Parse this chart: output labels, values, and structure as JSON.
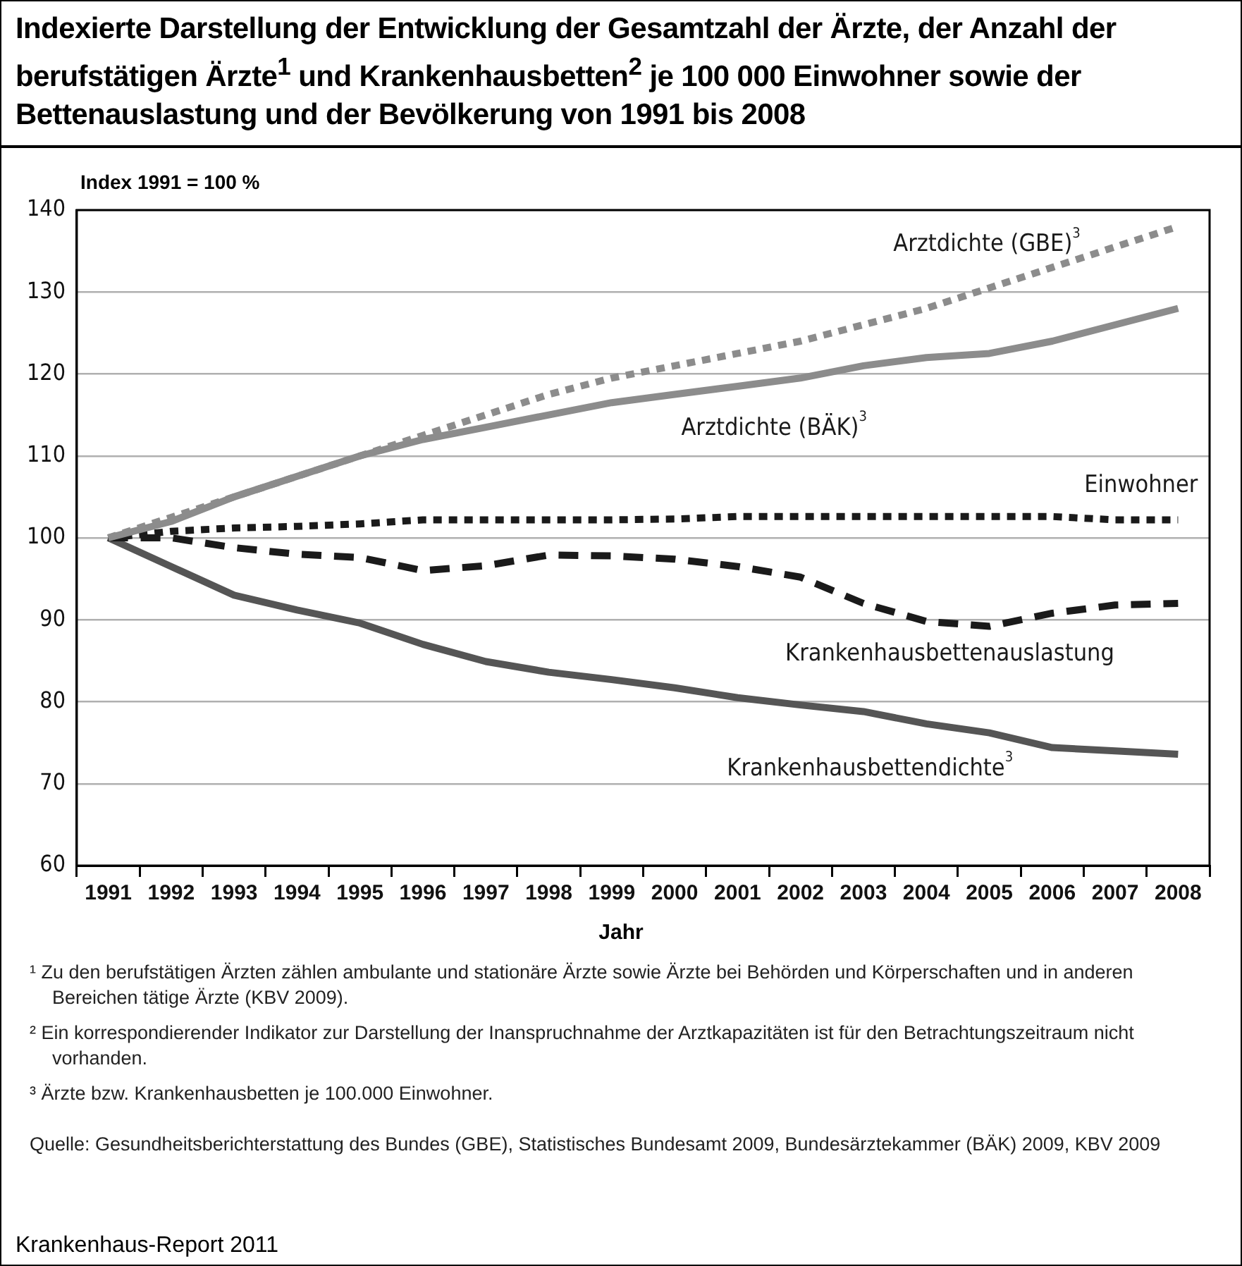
{
  "chart_data": {
    "type": "line",
    "title": "Indexierte Darstellung der Entwicklung der Gesamtzahl der Ärzte, der Anzahl der berufstätigen Ärzte$^{1}$ und Krankenhausbetten$^{2}$ je 100 000 Einwohner sowie der Bettenauslastung und der Bevölkerung von 1991 bis 2008",
    "ylabel": "Index 1991 = 100 %",
    "xlabel": "Jahr",
    "categories": [
      "1991",
      "1992",
      "1993",
      "1994",
      "1995",
      "1996",
      "1997",
      "1998",
      "1999",
      "2000",
      "2001",
      "2002",
      "2003",
      "2004",
      "2005",
      "2006",
      "2007",
      "2008"
    ],
    "ylim": [
      60,
      140
    ],
    "yticks": [
      60,
      70,
      80,
      90,
      100,
      110,
      120,
      130,
      140
    ],
    "grid": "y",
    "legend": false,
    "marker": "none",
    "series": [
      {
        "name": "Arztdichte (GBE)$^{3}$",
        "color": "#8c8c8c",
        "line_style": "dotted",
        "values": [
          100,
          102.5,
          105,
          107.5,
          110,
          112.5,
          115,
          117.5,
          119.5,
          121,
          122.5,
          124,
          126,
          128,
          130.5,
          133,
          135.5,
          138
        ]
      },
      {
        "name": "Arztdichte (BÄK)$^{3}$",
        "color": "#8c8c8c",
        "line_style": "solid",
        "values": [
          100,
          102,
          105,
          107.5,
          110,
          112,
          113.5,
          115,
          116.5,
          117.5,
          118.5,
          119.5,
          121,
          122,
          122.5,
          124,
          126,
          128
        ]
      },
      {
        "name": "Einwohner",
        "color": "#1a1a1a",
        "line_style": "dotted",
        "values": [
          100,
          100.8,
          101.2,
          101.4,
          101.7,
          102.2,
          102.2,
          102.2,
          102.2,
          102.3,
          102.6,
          102.6,
          102.6,
          102.6,
          102.6,
          102.6,
          102.2,
          102.2
        ]
      },
      {
        "name": "Krankenhausbettenauslastung",
        "color": "#1a1a1a",
        "line_style": "dashed",
        "values": [
          100,
          100,
          98.8,
          98,
          97.6,
          96,
          96.6,
          97.9,
          97.8,
          97.4,
          96.5,
          95.2,
          92,
          89.8,
          89.2,
          90.8,
          91.8,
          92
        ]
      },
      {
        "name": "Krankenhausbettendichte$^{3}$",
        "color": "#555555",
        "line_style": "solid",
        "values": [
          100,
          96.5,
          93,
          91.2,
          89.6,
          87,
          84.9,
          83.6,
          82.7,
          81.7,
          80.5,
          79.6,
          78.8,
          77.3,
          76.2,
          74.4,
          74,
          73.6
        ]
      }
    ],
    "annotations": [
      "¹ Zu den berufstätigen Ärzten zählen ambulante und stationäre Ärzte sowie Ärzte bei Behörden und Körperschaften und in anderen Bereichen tätige Ärzte (KBV 2009).",
      "² Ein korrespondierender Indikator zur Darstellung der Inanspruchnahme der Arztkapazitäten ist für den Betrachtungszeitraum nicht vorhanden.",
      "³ Ärzte bzw. Krankenhausbetten je 100.000 Einwohner.",
      "Quelle: Gesundheitsberichterstattung des Bundes (GBE), Statistisches Bundesamt 2009, Bundesärztekammer (BÄK) 2009, KBV 2009",
      "Krankenhaus-Report 2011"
    ]
  }
}
